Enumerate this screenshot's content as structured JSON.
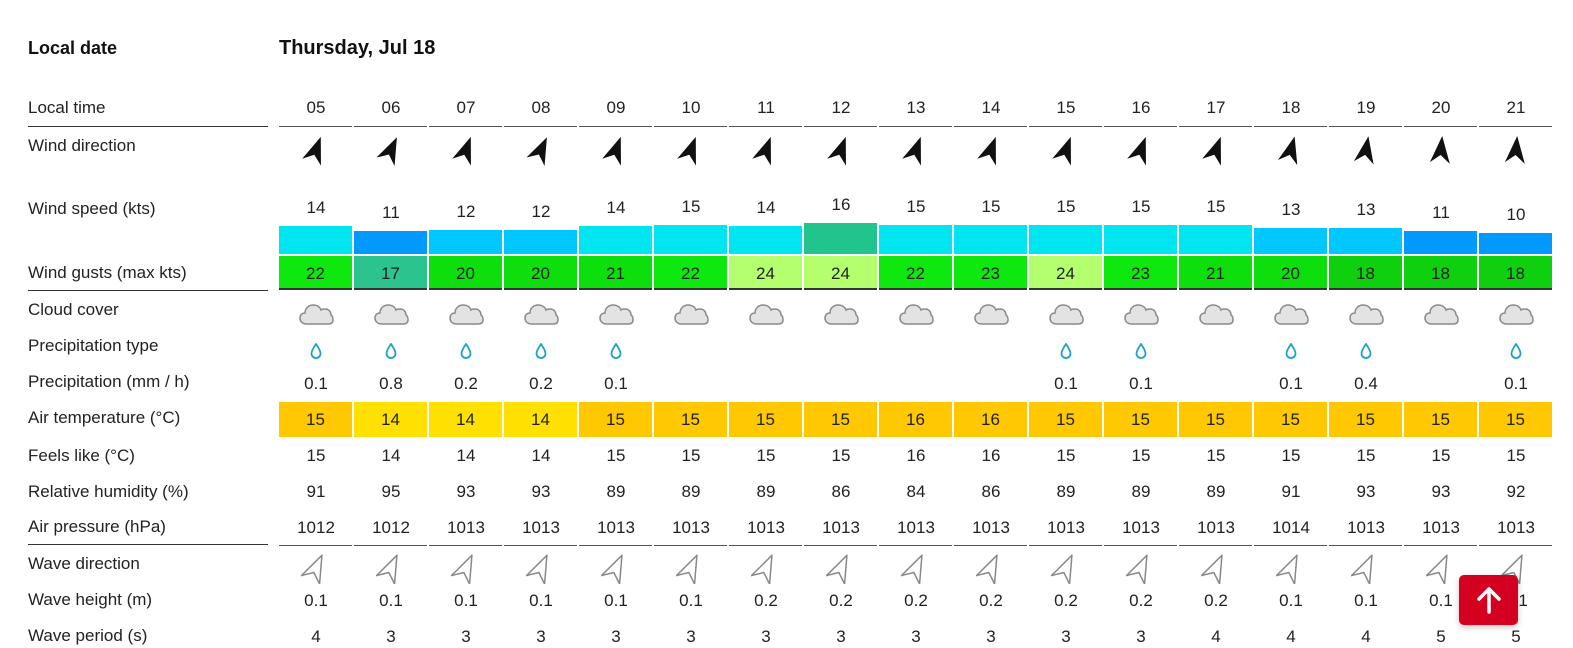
{
  "header": {
    "local_date_label": "Local date",
    "date": "Thursday, Jul 18"
  },
  "labels": {
    "local_time": "Local time",
    "wind_direction": "Wind direction",
    "wind_speed": "Wind speed (kts)",
    "wind_gusts": "Wind gusts (max kts)",
    "cloud_cover": "Cloud cover",
    "precip_type": "Precipitation type",
    "precip": "Precipitation (mm / h)",
    "air_temp": "Air temperature (°C)",
    "feels_like": "Feels like (°C)",
    "humidity": "Relative humidity (%)",
    "pressure": "Air pressure (hPa)",
    "wave_direction": "Wave direction",
    "wave_height": "Wave height (m)",
    "wave_period": "Wave period (s)"
  },
  "hours": [
    "05",
    "06",
    "07",
    "08",
    "09",
    "10",
    "11",
    "12",
    "13",
    "14",
    "15",
    "16",
    "17",
    "18",
    "19",
    "20",
    "21"
  ],
  "wind_direction_deg": [
    20,
    25,
    20,
    25,
    20,
    20,
    20,
    20,
    20,
    20,
    20,
    20,
    20,
    15,
    10,
    5,
    5
  ],
  "wind_speed": [
    14,
    11,
    12,
    12,
    14,
    15,
    14,
    16,
    15,
    15,
    15,
    15,
    15,
    13,
    13,
    11,
    10
  ],
  "wind_speed_colors": [
    "#00e6f0",
    "#0099ff",
    "#00c8ff",
    "#00c8ff",
    "#00e6f0",
    "#00e6f0",
    "#00e6f0",
    "#22c48e",
    "#00e6f0",
    "#00e6f0",
    "#00e6f0",
    "#00e6f0",
    "#00e6f0",
    "#00c8ff",
    "#00c8ff",
    "#0099ff",
    "#0099ff"
  ],
  "wind_gusts": [
    "22",
    "17",
    "20",
    "20",
    "21",
    "22",
    "24",
    "24",
    "22",
    "23",
    "24",
    "23",
    "21",
    "20",
    "18",
    "18",
    "18"
  ],
  "wind_gusts_colors": [
    "#0fe80f",
    "#2cc48e",
    "#0ddf0d",
    "#0ddf0d",
    "#0ddf0d",
    "#0fe80f",
    "#b4ff6e",
    "#b4ff6e",
    "#0fe80f",
    "#0fe80f",
    "#b4ff6e",
    "#0fe80f",
    "#0ddf0d",
    "#0ddf0d",
    "#0fd00f",
    "#0fd00f",
    "#0fd00f"
  ],
  "cloud_icon": "cloud-icon",
  "precip_type_icon": "raindrop-icon",
  "precip_type_shown": [
    true,
    true,
    true,
    true,
    true,
    false,
    false,
    false,
    false,
    false,
    true,
    true,
    false,
    true,
    true,
    false,
    true
  ],
  "precipitation": [
    "0.1",
    "0.8",
    "0.2",
    "0.2",
    "0.1",
    "",
    "",
    "",
    "",
    "",
    "0.1",
    "0.1",
    "",
    "0.1",
    "0.4",
    "",
    "0.1"
  ],
  "air_temperature": [
    "15",
    "14",
    "14",
    "14",
    "15",
    "15",
    "15",
    "15",
    "16",
    "16",
    "15",
    "15",
    "15",
    "15",
    "15",
    "15",
    "15"
  ],
  "air_temperature_colors": [
    "#ffc800",
    "#ffe000",
    "#ffe000",
    "#ffe000",
    "#ffc800",
    "#ffc800",
    "#ffc800",
    "#ffc800",
    "#ffc800",
    "#ffc800",
    "#ffc800",
    "#ffc800",
    "#ffc800",
    "#ffc800",
    "#ffc800",
    "#ffc800",
    "#ffc800"
  ],
  "feels_like": [
    "15",
    "14",
    "14",
    "14",
    "15",
    "15",
    "15",
    "15",
    "16",
    "16",
    "15",
    "15",
    "15",
    "15",
    "15",
    "15",
    "15"
  ],
  "humidity": [
    "91",
    "95",
    "93",
    "93",
    "89",
    "89",
    "89",
    "86",
    "84",
    "86",
    "89",
    "89",
    "89",
    "91",
    "93",
    "93",
    "92"
  ],
  "pressure": [
    "1012",
    "1012",
    "1013",
    "1013",
    "1013",
    "1013",
    "1013",
    "1013",
    "1013",
    "1013",
    "1013",
    "1013",
    "1013",
    "1014",
    "1013",
    "1013",
    "1013"
  ],
  "wave_direction_deg": [
    25,
    25,
    25,
    25,
    25,
    25,
    25,
    25,
    25,
    25,
    25,
    25,
    25,
    25,
    25,
    25,
    25
  ],
  "wave_height": [
    "0.1",
    "0.1",
    "0.1",
    "0.1",
    "0.1",
    "0.1",
    "0.2",
    "0.2",
    "0.2",
    "0.2",
    "0.2",
    "0.2",
    "0.2",
    "0.1",
    "0.1",
    "0.1",
    "0.1"
  ],
  "wave_period": [
    "4",
    "3",
    "3",
    "3",
    "3",
    "3",
    "3",
    "3",
    "3",
    "3",
    "3",
    "3",
    "4",
    "4",
    "4",
    "5",
    "5"
  ],
  "scroll_top_icon": "arrow-up-icon"
}
